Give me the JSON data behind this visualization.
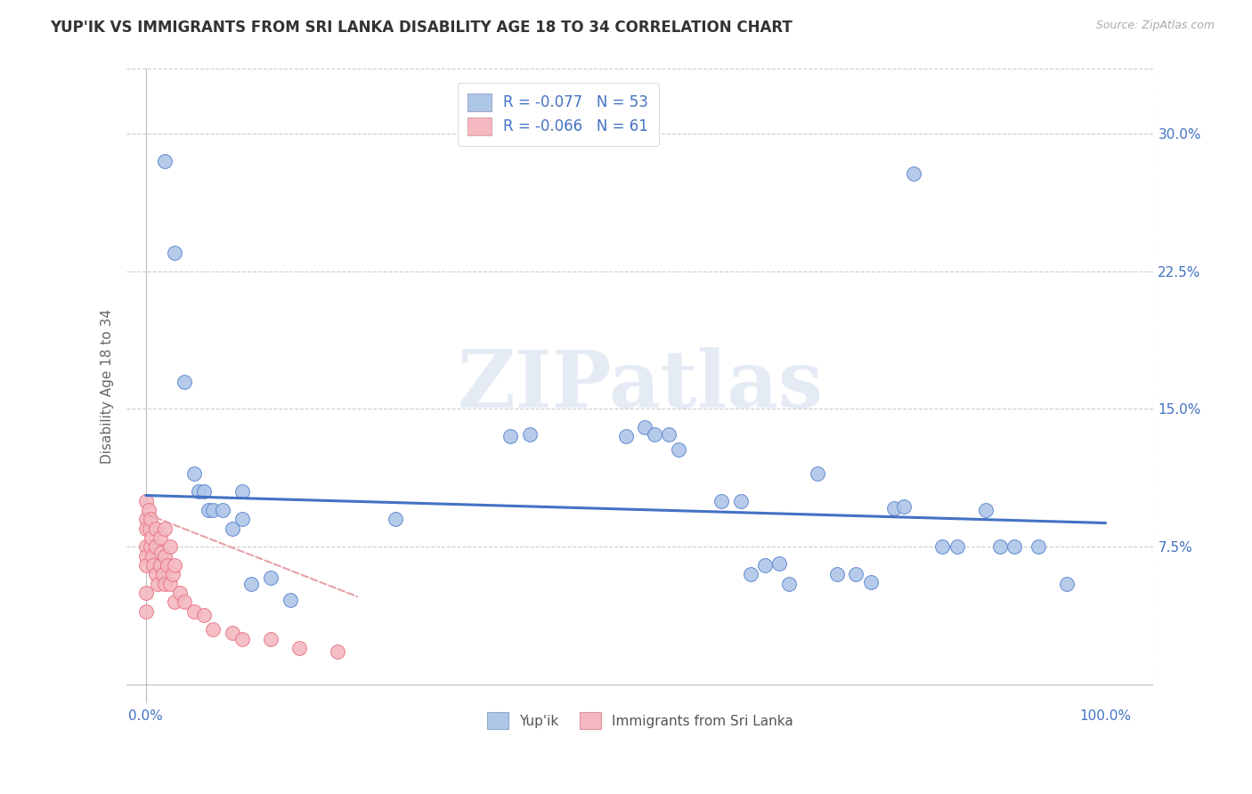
{
  "title": "YUP'IK VS IMMIGRANTS FROM SRI LANKA DISABILITY AGE 18 TO 34 CORRELATION CHART",
  "source": "Source: ZipAtlas.com",
  "ylabel": "Disability Age 18 to 34",
  "ytick_labels": [
    "7.5%",
    "15.0%",
    "22.5%",
    "30.0%"
  ],
  "ytick_values": [
    0.075,
    0.15,
    0.225,
    0.3
  ],
  "xlim": [
    -0.02,
    1.05
  ],
  "ylim": [
    -0.01,
    0.335
  ],
  "legend_label1": "Yup'ik",
  "legend_label2": "Immigrants from Sri Lanka",
  "r1": "-0.077",
  "n1": "53",
  "r2": "-0.066",
  "n2": "61",
  "color_blue": "#aec6e8",
  "color_pink": "#f4b8c1",
  "edge_blue": "#5580cc",
  "edge_pink": "#e87080",
  "line_blue": "#4472c4",
  "line_pink_dash": "#e8a0a8",
  "watermark": "ZIPatlas",
  "yupik_x": [
    0.02,
    0.03,
    0.04,
    0.05,
    0.055,
    0.06,
    0.065,
    0.07,
    0.08,
    0.09,
    0.1,
    0.1,
    0.11,
    0.13,
    0.15,
    0.26,
    0.38,
    0.4,
    0.5,
    0.52,
    0.53,
    0.545,
    0.555,
    0.6,
    0.62,
    0.63,
    0.645,
    0.66,
    0.67,
    0.7,
    0.72,
    0.74,
    0.755,
    0.78,
    0.79,
    0.8,
    0.83,
    0.845,
    0.875,
    0.89,
    0.905,
    0.93,
    0.96
  ],
  "yupik_y": [
    0.285,
    0.235,
    0.165,
    0.115,
    0.105,
    0.105,
    0.095,
    0.095,
    0.095,
    0.085,
    0.105,
    0.09,
    0.055,
    0.058,
    0.046,
    0.09,
    0.135,
    0.136,
    0.135,
    0.14,
    0.136,
    0.136,
    0.128,
    0.1,
    0.1,
    0.06,
    0.065,
    0.066,
    0.055,
    0.115,
    0.06,
    0.06,
    0.056,
    0.096,
    0.097,
    0.278,
    0.075,
    0.075,
    0.095,
    0.075,
    0.075,
    0.075,
    0.055
  ],
  "srilanka_x": [
    0.0,
    0.0,
    0.0,
    0.0,
    0.0,
    0.0,
    0.0,
    0.0,
    0.003,
    0.004,
    0.005,
    0.005,
    0.006,
    0.007,
    0.008,
    0.01,
    0.01,
    0.01,
    0.012,
    0.015,
    0.015,
    0.016,
    0.018,
    0.02,
    0.02,
    0.02,
    0.022,
    0.025,
    0.025,
    0.028,
    0.03,
    0.03,
    0.035,
    0.04,
    0.05,
    0.06,
    0.07,
    0.09,
    0.1,
    0.13,
    0.16,
    0.2
  ],
  "srilanka_y": [
    0.1,
    0.09,
    0.085,
    0.075,
    0.07,
    0.065,
    0.05,
    0.04,
    0.095,
    0.085,
    0.09,
    0.075,
    0.08,
    0.07,
    0.065,
    0.085,
    0.075,
    0.06,
    0.055,
    0.08,
    0.065,
    0.072,
    0.06,
    0.085,
    0.07,
    0.055,
    0.065,
    0.075,
    0.055,
    0.06,
    0.065,
    0.045,
    0.05,
    0.045,
    0.04,
    0.038,
    0.03,
    0.028,
    0.025,
    0.025,
    0.02,
    0.018
  ],
  "trend_blue_x0": 0.0,
  "trend_blue_x1": 1.0,
  "trend_blue_y0": 0.103,
  "trend_blue_y1": 0.088,
  "trend_pink_x0": 0.0,
  "trend_pink_x1": 0.22,
  "trend_pink_y0": 0.093,
  "trend_pink_y1": 0.048
}
